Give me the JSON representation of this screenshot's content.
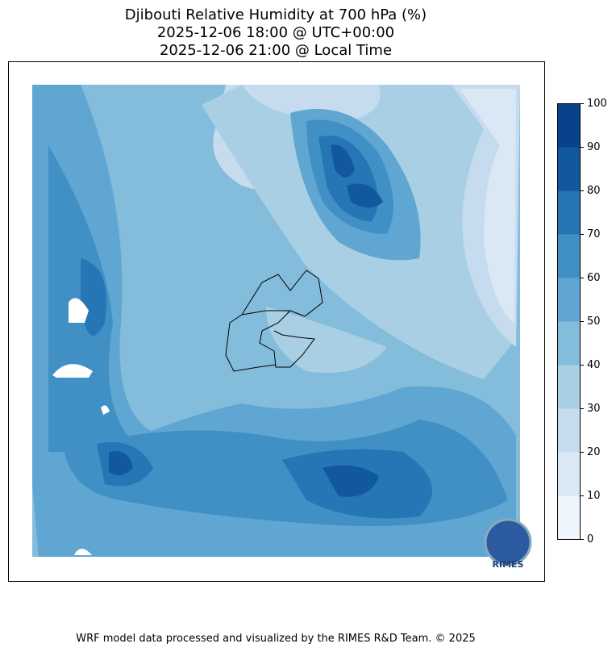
{
  "title": [
    "Djibouti Relative Humidity at 700 hPa (%)",
    "2025-12-06 18:00 @ UTC+00:00",
    "2025-12-06 21:00 @ Local Time"
  ],
  "colorbar": {
    "ticks": [
      0,
      10,
      20,
      30,
      40,
      50,
      60,
      70,
      80,
      90,
      100
    ],
    "colors": [
      "#eef5fc",
      "#dae8f6",
      "#c7dbef",
      "#a9cfe5",
      "#84bcdc",
      "#60a6d2",
      "#4190c5",
      "#2675b5",
      "#11589f",
      "#08428a"
    ]
  },
  "logo": "RIMES",
  "footer": "WRF model data processed and visualized by the RIMES R&D Team. © 2025"
}
